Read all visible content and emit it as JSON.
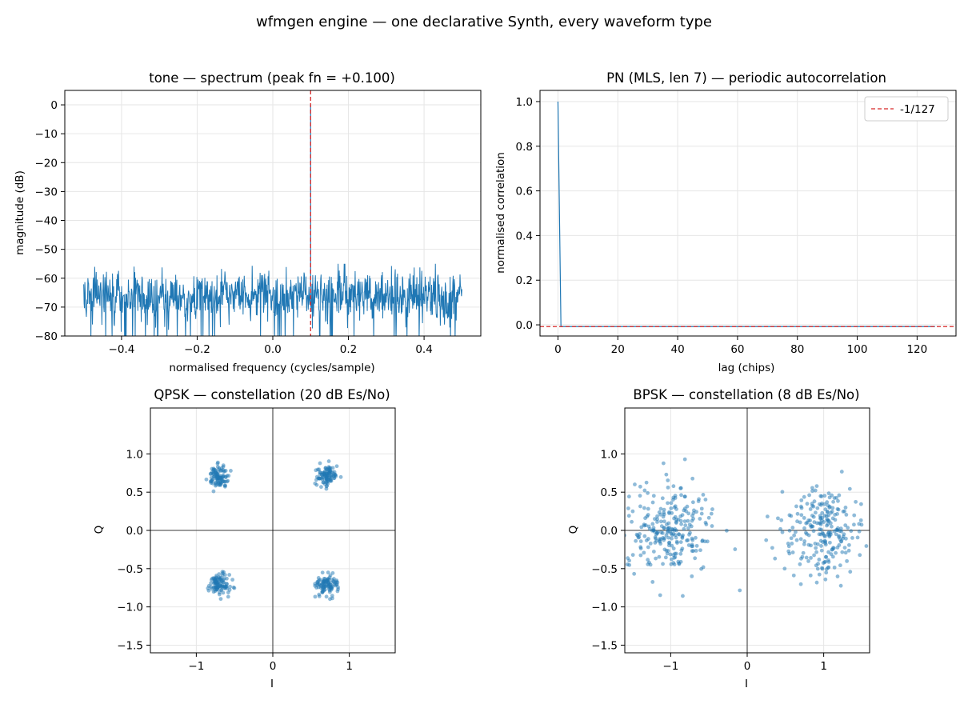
{
  "figure": {
    "suptitle": "wfmgen engine — one declarative Synth, every waveform type"
  },
  "colors": {
    "series": "#1f77b4",
    "reference_line": "#d62728",
    "grid": "#e6e6e6"
  },
  "chart_data": [
    {
      "type": "line",
      "title": "tone — spectrum (peak fn = +0.100)",
      "xlabel": "normalised frequency (cycles/sample)",
      "ylabel": "magnitude (dB)",
      "xlim": [
        -0.55,
        0.55
      ],
      "ylim": [
        -80,
        5
      ],
      "xticks": [
        -0.4,
        -0.2,
        0.0,
        0.2,
        0.4
      ],
      "xtick_labels": [
        "−0.4",
        "−0.2",
        "0.0",
        "0.2",
        "0.4"
      ],
      "yticks": [
        0,
        -10,
        -20,
        -30,
        -40,
        -50,
        -60,
        -70,
        -80
      ],
      "ytick_labels": [
        "0",
        "−10",
        "−20",
        "−30",
        "−40",
        "−50",
        "−60",
        "−70",
        "−80"
      ],
      "grid": true,
      "series": [
        {
          "description": "noise floor spectrum",
          "x_range": [
            -0.5,
            0.5
          ],
          "noise_floor_db_range": [
            -80,
            -55
          ],
          "typical_level_db": -66
        }
      ],
      "peak": {
        "x": 0.1,
        "y": 0
      },
      "vline": {
        "x": 0.1,
        "style": "dashed"
      }
    },
    {
      "type": "line",
      "title": "PN (MLS, len 7) — periodic autocorrelation",
      "xlabel": "lag (chips)",
      "ylabel": "normalised correlation",
      "xlim": [
        -6,
        133
      ],
      "ylim": [
        -0.05,
        1.05
      ],
      "xticks": [
        0,
        20,
        40,
        60,
        80,
        100,
        120
      ],
      "xtick_labels": [
        "0",
        "20",
        "40",
        "60",
        "80",
        "100",
        "120"
      ],
      "yticks": [
        0.0,
        0.2,
        0.4,
        0.6,
        0.8,
        1.0
      ],
      "ytick_labels": [
        "0.0",
        "0.2",
        "0.4",
        "0.6",
        "0.8",
        "1.0"
      ],
      "grid": true,
      "series": [
        {
          "x": [
            0,
            1,
            126
          ],
          "y": [
            1.0,
            -0.00787,
            -0.00787
          ]
        }
      ],
      "hline": {
        "y": -0.00787,
        "style": "dashed",
        "label": "-1/127"
      },
      "legend": {
        "entries": [
          "-1/127"
        ],
        "placement": "top-right"
      }
    },
    {
      "type": "scatter",
      "title": "QPSK — constellation (20 dB Es/No)",
      "xlabel": "I",
      "ylabel": "Q",
      "xlim": [
        -1.6,
        1.6
      ],
      "ylim": [
        -1.6,
        1.6
      ],
      "xticks": [
        -1,
        0,
        1
      ],
      "xtick_labels": [
        "−1",
        "0",
        "1"
      ],
      "yticks": [
        1.0,
        0.5,
        0.0,
        -0.5,
        -1.0,
        -1.5
      ],
      "ytick_labels": [
        "1.0",
        "0.5",
        "0.0",
        "−0.5",
        "−1.0",
        "−1.5"
      ],
      "grid": true,
      "axes_lines": true,
      "clusters": [
        {
          "center": [
            -0.707,
            0.707
          ],
          "spread": 0.07,
          "n": 100
        },
        {
          "center": [
            0.707,
            0.707
          ],
          "spread": 0.07,
          "n": 100
        },
        {
          "center": [
            -0.707,
            -0.707
          ],
          "spread": 0.07,
          "n": 100
        },
        {
          "center": [
            0.707,
            -0.707
          ],
          "spread": 0.07,
          "n": 100
        }
      ]
    },
    {
      "type": "scatter",
      "title": "BPSK — constellation (8 dB Es/No)",
      "xlabel": "I",
      "ylabel": "Q",
      "xlim": [
        -1.6,
        1.6
      ],
      "ylim": [
        -1.6,
        1.6
      ],
      "xticks": [
        -1,
        0,
        1
      ],
      "xtick_labels": [
        "−1",
        "0",
        "1"
      ],
      "yticks": [
        1.0,
        0.5,
        0.0,
        -0.5,
        -1.0,
        -1.5
      ],
      "ytick_labels": [
        "1.0",
        "0.5",
        "0.0",
        "−0.5",
        "−1.0",
        "−1.5"
      ],
      "grid": true,
      "axes_lines": true,
      "clusters": [
        {
          "center": [
            -1.0,
            0.0
          ],
          "spread": 0.28,
          "n": 250
        },
        {
          "center": [
            1.0,
            0.0
          ],
          "spread": 0.28,
          "n": 250
        }
      ]
    }
  ]
}
